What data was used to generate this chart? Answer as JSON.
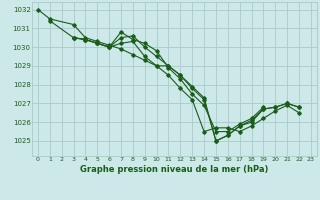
{
  "title": "Graphe pression niveau de la mer (hPa)",
  "bg_color": "#cce8e8",
  "grid_color": "#aacaca",
  "line_color": "#1a5c1a",
  "text_color": "#1a5c1a",
  "xlim": [
    -0.5,
    23.5
  ],
  "ylim": [
    1024.2,
    1032.4
  ],
  "yticks": [
    1025,
    1026,
    1027,
    1028,
    1029,
    1030,
    1031,
    1032
  ],
  "xticks": [
    0,
    1,
    2,
    3,
    4,
    5,
    6,
    7,
    8,
    9,
    10,
    11,
    12,
    13,
    14,
    15,
    16,
    17,
    18,
    19,
    20,
    21,
    22,
    23
  ],
  "series": [
    {
      "x": [
        0,
        1,
        3,
        4,
        5,
        6,
        7,
        8,
        9,
        10,
        11,
        12,
        13,
        14,
        15,
        16,
        17,
        18,
        19,
        20,
        21,
        22
      ],
      "y": [
        1032.0,
        1031.5,
        1031.2,
        1030.5,
        1030.3,
        1030.1,
        1029.9,
        1029.6,
        1029.3,
        1029.0,
        1029.0,
        1028.5,
        1027.9,
        1027.3,
        1025.0,
        1025.3,
        1025.8,
        1026.0,
        1026.7,
        1026.8,
        1027.0,
        1026.8
      ]
    },
    {
      "x": [
        1,
        3,
        4,
        5,
        6,
        7,
        8,
        9,
        10,
        11,
        12,
        13,
        14,
        15,
        16,
        17,
        18,
        19,
        20,
        21,
        22
      ],
      "y": [
        1031.4,
        1030.5,
        1030.4,
        1030.2,
        1030.0,
        1030.5,
        1030.6,
        1030.0,
        1029.5,
        1029.0,
        1028.5,
        1027.8,
        1027.2,
        1025.0,
        1025.3,
        1025.8,
        1026.1,
        1026.7,
        1026.8,
        1027.0,
        1026.8
      ]
    },
    {
      "x": [
        3,
        4,
        5,
        6,
        7,
        8,
        9,
        10,
        11,
        12,
        13,
        14,
        15,
        16,
        17,
        18,
        19
      ],
      "y": [
        1030.5,
        1030.4,
        1030.2,
        1030.0,
        1030.8,
        1030.4,
        1030.2,
        1029.8,
        1028.9,
        1028.3,
        1027.5,
        1026.9,
        1025.5,
        1025.5,
        1025.9,
        1026.2,
        1026.8
      ]
    },
    {
      "x": [
        3,
        4,
        5,
        6,
        7,
        8,
        9,
        10,
        11,
        12,
        13,
        14,
        15,
        16,
        17,
        18,
        19,
        20,
        21,
        22
      ],
      "y": [
        1030.5,
        1030.4,
        1030.2,
        1030.0,
        1030.2,
        1030.3,
        1029.5,
        1029.0,
        1028.5,
        1027.8,
        1027.2,
        1025.5,
        1025.7,
        1025.7,
        1025.5,
        1025.8,
        1026.2,
        1026.6,
        1026.9,
        1026.5
      ]
    }
  ]
}
